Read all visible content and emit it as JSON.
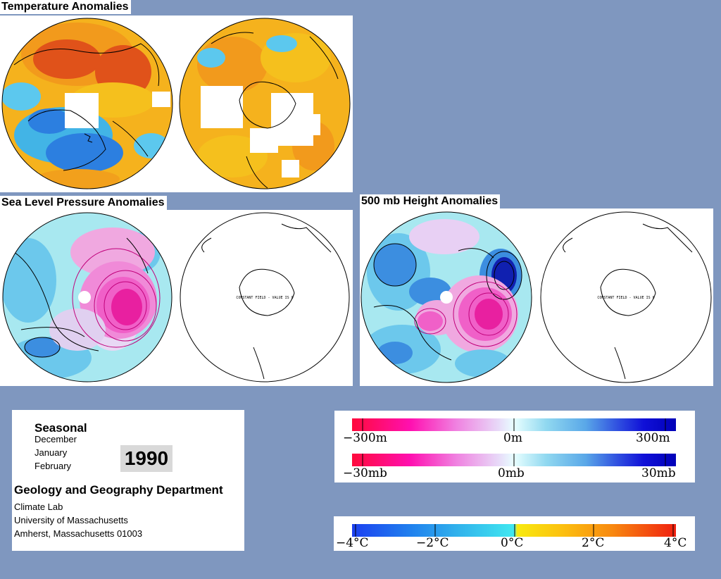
{
  "titles": {
    "temperature": "Temperature Anomalies",
    "slp": "Sea Level Pressure Anomalies",
    "height": "500 mb Height Anomalies"
  },
  "constant_field_label": "CONSTANT FIELD - VALUE IS 0",
  "info": {
    "seasonal": "Seasonal",
    "months": [
      "December",
      "January",
      "February"
    ],
    "year": "1990",
    "department": "Geology and Geography Department",
    "lines": [
      "Climate Lab",
      "University of Massachusetts",
      "Amherst, Massachusetts 01003"
    ]
  },
  "legends": {
    "height": {
      "min": "−300m",
      "mid": "0m",
      "max": "300m"
    },
    "pressure": {
      "min": "−30mb",
      "mid": "0mb",
      "max": "30mb"
    },
    "temperature": {
      "t1": "−4°C",
      "t2": "−2°C",
      "t3": "0°C",
      "t4": "2°C",
      "t5": "4°C"
    }
  },
  "colors": {
    "background": "#7f97bf",
    "warm": "#f0a020",
    "hot": "#e8401a",
    "neutral": "#ffd21a",
    "cool": "#2c9fe0",
    "cold": "#2060d8",
    "pressure_high": "#e020a0",
    "pressure_low": "#1030c0",
    "contour_neutral": "#a8e8f0"
  }
}
